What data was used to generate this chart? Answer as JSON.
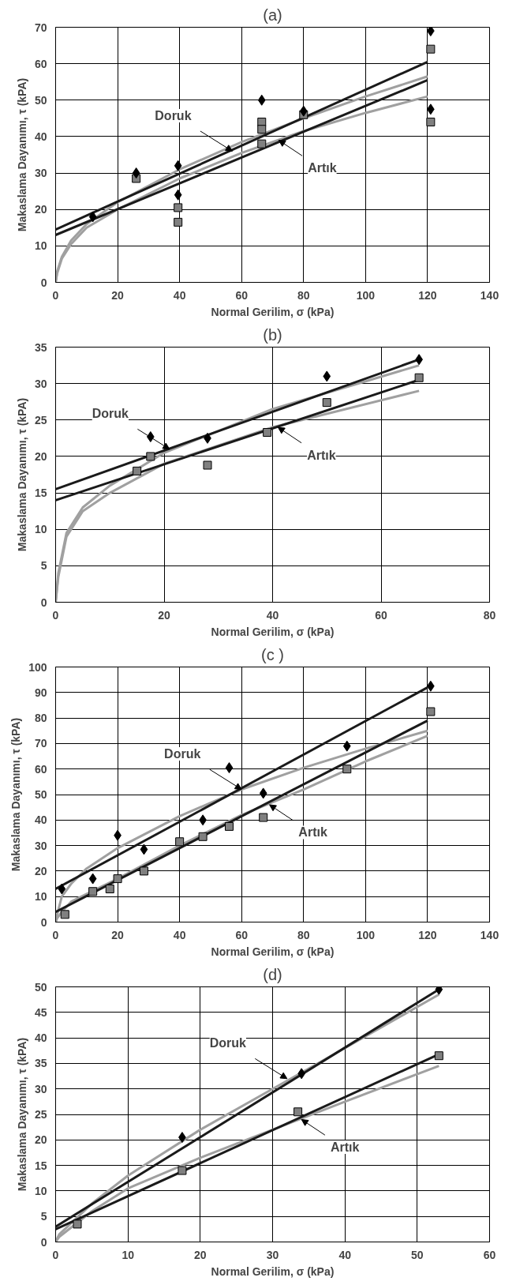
{
  "chart_data": [
    {
      "type": "scatter",
      "title": "(a)",
      "xlabel": "Normal Gerilim, σ (kPa)",
      "ylabel": "Makaslama Dayanımı, τ (kPA)",
      "xlim": [
        0,
        140
      ],
      "ylim": [
        0,
        70
      ],
      "xticks": [
        0,
        20,
        40,
        60,
        80,
        100,
        120,
        140
      ],
      "yticks": [
        0,
        10,
        20,
        30,
        40,
        50,
        60,
        70
      ],
      "grid": true,
      "annotations": [
        {
          "text": "Doruk",
          "x": 57,
          "y": 36
        },
        {
          "text": "Artık",
          "x": 72,
          "y": 39
        }
      ],
      "series": [
        {
          "type": "line",
          "color": "#a0a0a0",
          "x": [
            0,
            0.5,
            2,
            5,
            10,
            20,
            40,
            60,
            80,
            100,
            120
          ],
          "values": [
            0,
            3,
            7,
            11.5,
            16,
            22,
            31,
            38.5,
            45,
            51,
            56.5
          ]
        },
        {
          "type": "line",
          "color": "#a0a0a0",
          "x": [
            0,
            0.5,
            2,
            5,
            10,
            20,
            40,
            60,
            80,
            100,
            120
          ],
          "values": [
            0,
            2.5,
            6.5,
            10.5,
            15,
            20,
            28.5,
            35.5,
            41.5,
            46.5,
            51
          ]
        },
        {
          "type": "line",
          "color": "#1a1a1a",
          "x": [
            0,
            120
          ],
          "values": [
            14.5,
            60.5
          ]
        },
        {
          "type": "line",
          "color": "#1a1a1a",
          "x": [
            0,
            120
          ],
          "values": [
            13,
            55.5
          ]
        },
        {
          "type": "scatter",
          "marker": "square",
          "color": "#808080",
          "x": [
            26,
            39.5,
            39.5,
            66.5,
            66.5,
            66.5,
            80,
            121,
            121
          ],
          "values": [
            28.5,
            20.5,
            16.5,
            44,
            42,
            38,
            46,
            64,
            44
          ]
        },
        {
          "type": "scatter",
          "marker": "diamond",
          "color": "#000000",
          "x": [
            12,
            26,
            39.5,
            39.5,
            66.5,
            80,
            121,
            121
          ],
          "values": [
            18,
            30,
            32,
            24,
            50,
            47,
            69,
            47.5
          ]
        }
      ]
    },
    {
      "type": "scatter",
      "title": "(b)",
      "xlabel": "Normal Gerilim, σ (kPa)",
      "ylabel": "Makaslama Dayanımı, τ (kPA)",
      "xlim": [
        0,
        80
      ],
      "ylim": [
        0,
        35
      ],
      "xticks": [
        0,
        20,
        40,
        60,
        80
      ],
      "yticks": [
        0,
        5,
        10,
        15,
        20,
        25,
        30,
        35
      ],
      "grid": true,
      "annotations": [
        {
          "text": "Doruk",
          "x": 21,
          "y": 21
        },
        {
          "text": "Artık",
          "x": 41,
          "y": 24
        }
      ],
      "series": [
        {
          "type": "line",
          "color": "#a0a0a0",
          "x": [
            0,
            0.5,
            2,
            5,
            10,
            20,
            40,
            67
          ],
          "values": [
            0,
            4,
            9.5,
            13,
            16,
            20.5,
            26.5,
            32.5
          ]
        },
        {
          "type": "line",
          "color": "#a0a0a0",
          "x": [
            0,
            0.5,
            2,
            5,
            10,
            20,
            40,
            67
          ],
          "values": [
            0,
            3.5,
            9,
            12.5,
            15,
            19,
            24,
            29
          ]
        },
        {
          "type": "line",
          "color": "#1a1a1a",
          "x": [
            0,
            67
          ],
          "values": [
            15.5,
            33.3
          ]
        },
        {
          "type": "line",
          "color": "#1a1a1a",
          "x": [
            0,
            67
          ],
          "values": [
            14,
            30.5
          ]
        },
        {
          "type": "scatter",
          "marker": "diamond",
          "color": "#000000",
          "x": [
            17.5,
            28,
            50,
            67
          ],
          "values": [
            22.7,
            22.5,
            31,
            33.3
          ]
        },
        {
          "type": "scatter",
          "marker": "square",
          "color": "#808080",
          "x": [
            15,
            17.5,
            28,
            39,
            50,
            67
          ],
          "values": [
            18,
            20,
            18.8,
            23.3,
            27.4,
            30.8
          ]
        }
      ]
    },
    {
      "type": "scatter",
      "title": "(c )",
      "xlabel": "Normal Gerilim, σ (kPa)",
      "ylabel": "Makaslama Dayanımı, τ (kPA)",
      "xlim": [
        0,
        140
      ],
      "ylim": [
        0,
        100
      ],
      "xticks": [
        0,
        20,
        40,
        60,
        80,
        100,
        120,
        140
      ],
      "yticks": [
        0,
        10,
        20,
        30,
        40,
        50,
        60,
        70,
        80,
        90,
        100
      ],
      "grid": true,
      "annotations": [
        {
          "text": "Doruk",
          "x": 60,
          "y": 52
        },
        {
          "text": "Artık",
          "x": 69,
          "y": 46
        }
      ],
      "series": [
        {
          "type": "line",
          "color": "#a0a0a0",
          "x": [
            0,
            0.5,
            2,
            5,
            10,
            20,
            40,
            60,
            80,
            100,
            120
          ],
          "values": [
            0,
            3,
            10,
            15,
            21,
            29,
            41.5,
            52,
            60.5,
            68,
            75
          ]
        },
        {
          "type": "line",
          "color": "#a0a0a0",
          "x": [
            0,
            0.5,
            2,
            5,
            10,
            20,
            40,
            60,
            80,
            100,
            120
          ],
          "values": [
            0,
            1.5,
            4,
            8,
            11,
            17,
            30,
            42,
            52,
            63,
            73
          ]
        },
        {
          "type": "line",
          "color": "#1a1a1a",
          "x": [
            0,
            120
          ],
          "values": [
            13,
            92
          ]
        },
        {
          "type": "line",
          "color": "#1a1a1a",
          "x": [
            0,
            120
          ],
          "values": [
            4,
            79
          ]
        },
        {
          "type": "scatter",
          "marker": "diamond",
          "color": "#000000",
          "x": [
            2,
            12,
            20,
            28.5,
            47.5,
            56,
            67,
            94,
            121
          ],
          "values": [
            13,
            17,
            34,
            28.5,
            40,
            60.5,
            50.5,
            69,
            92.5
          ]
        },
        {
          "type": "scatter",
          "marker": "square",
          "color": "#808080",
          "x": [
            3,
            12,
            17.5,
            20,
            28.5,
            40,
            47.5,
            56,
            67,
            94,
            121
          ],
          "values": [
            3,
            12,
            13,
            17,
            20,
            31.5,
            33.5,
            37.5,
            41,
            60,
            82.5
          ]
        }
      ]
    },
    {
      "type": "scatter",
      "title": "(d)",
      "xlabel": "Normal Gerilim, σ (kPa)",
      "ylabel": "Makaslama Dayanımı, τ (kPA)",
      "xlim": [
        0,
        60
      ],
      "ylim": [
        0,
        50
      ],
      "xticks": [
        0,
        10,
        20,
        30,
        40,
        50,
        60
      ],
      "yticks": [
        0,
        5,
        10,
        15,
        20,
        25,
        30,
        35,
        40,
        45,
        50
      ],
      "grid": true,
      "annotations": [
        {
          "text": "Doruk",
          "x": 32,
          "y": 32
        },
        {
          "text": "Artık",
          "x": 34,
          "y": 24
        }
      ],
      "series": [
        {
          "type": "line",
          "color": "#a0a0a0",
          "x": [
            0,
            0.5,
            5,
            10,
            20,
            30,
            40,
            53
          ],
          "values": [
            0,
            1.5,
            7.5,
            13,
            22,
            30,
            38,
            48.5
          ]
        },
        {
          "type": "line",
          "color": "#a0a0a0",
          "x": [
            0,
            0.5,
            5,
            10,
            20,
            30,
            40,
            53
          ],
          "values": [
            0,
            1,
            6,
            10.5,
            16.5,
            22,
            27.5,
            34.5
          ]
        },
        {
          "type": "line",
          "color": "#1a1a1a",
          "x": [
            0,
            53
          ],
          "values": [
            3,
            49.5
          ]
        },
        {
          "type": "line",
          "color": "#1a1a1a",
          "x": [
            0,
            53
          ],
          "values": [
            2.5,
            36.8
          ]
        },
        {
          "type": "scatter",
          "marker": "diamond",
          "color": "#000000",
          "x": [
            17.5,
            34,
            53
          ],
          "values": [
            20.5,
            33,
            49.5
          ]
        },
        {
          "type": "scatter",
          "marker": "square",
          "color": "#808080",
          "x": [
            3,
            17.5,
            33.5,
            53
          ],
          "values": [
            3.5,
            14,
            25.5,
            36.5
          ]
        }
      ]
    }
  ]
}
